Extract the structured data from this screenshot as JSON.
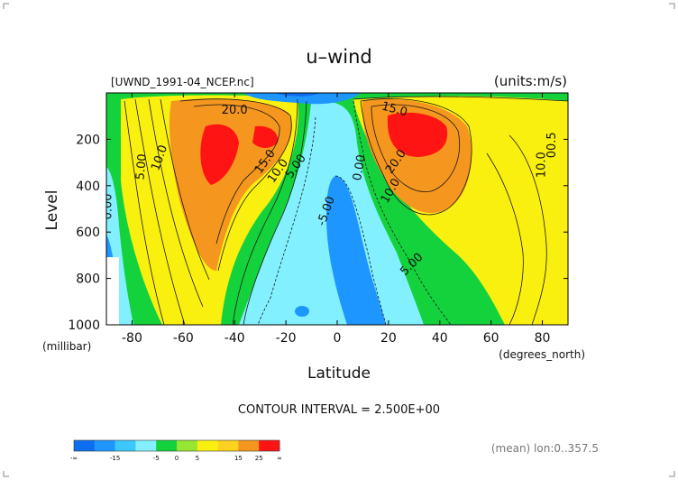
{
  "chart_data": {
    "type": "filled-contour",
    "title": "u–wind",
    "source_label": "[UWND_1991-04_NCEP.nc]",
    "units_label": "(units:m/s)",
    "xlabel": "Latitude",
    "x_units": "(degrees_north)",
    "ylabel": "Level",
    "y_units": "(millibar)",
    "xlim": [
      -90,
      90
    ],
    "ylim": [
      1000,
      0
    ],
    "x_ticks": [
      "-80",
      "-60",
      "-40",
      "-20",
      "0",
      "20",
      "40",
      "60",
      "80"
    ],
    "y_ticks": [
      "200",
      "400",
      "600",
      "800",
      "1000"
    ],
    "contour_interval_text": "CONTOUR INTERVAL = 2.500E+00",
    "footer_text": "(mean) lon:0..357.5",
    "contour_labels": [
      {
        "text": "20.0",
        "lat": -40,
        "level": 90,
        "angle": 0
      },
      {
        "text": "10.0",
        "lat": -68,
        "level": 285,
        "angle": -70
      },
      {
        "text": "15.0",
        "lat": -27,
        "level": 305,
        "angle": -55
      },
      {
        "text": "10.0",
        "lat": -22,
        "level": 345,
        "angle": -55
      },
      {
        "text": "5.00",
        "lat": -75,
        "level": 320,
        "angle": -85
      },
      {
        "text": "5.00",
        "lat": -15,
        "level": 325,
        "angle": -55
      },
      {
        "text": "0.00",
        "lat": -88,
        "level": 490,
        "angle": -90
      },
      {
        "text": "-5.00",
        "lat": -3,
        "level": 515,
        "angle": -70
      },
      {
        "text": "0.00",
        "lat": 10,
        "level": 325,
        "angle": -80
      },
      {
        "text": "15.0",
        "lat": 22,
        "level": 85,
        "angle": 15
      },
      {
        "text": "20.0",
        "lat": 24,
        "level": 305,
        "angle": -55
      },
      {
        "text": "10.0",
        "lat": 22,
        "level": 430,
        "angle": -60
      },
      {
        "text": "5.00",
        "lat": 30,
        "level": 750,
        "angle": -45
      },
      {
        "text": "00.5",
        "lat": 85,
        "level": 225,
        "angle": -90
      },
      {
        "text": "10.0",
        "lat": 81,
        "level": 310,
        "angle": -90
      }
    ],
    "colorbar": {
      "colors": [
        "#0d6ef0",
        "#1e96ff",
        "#3cc8ff",
        "#82f0ff",
        "#14d23c",
        "#96e632",
        "#faf00f",
        "#fcd21e",
        "#f5961e",
        "#ff1414"
      ],
      "tick_labels": [
        "-∞",
        "-15",
        "-5",
        "0",
        "5",
        "15",
        "25",
        "∞"
      ]
    }
  }
}
